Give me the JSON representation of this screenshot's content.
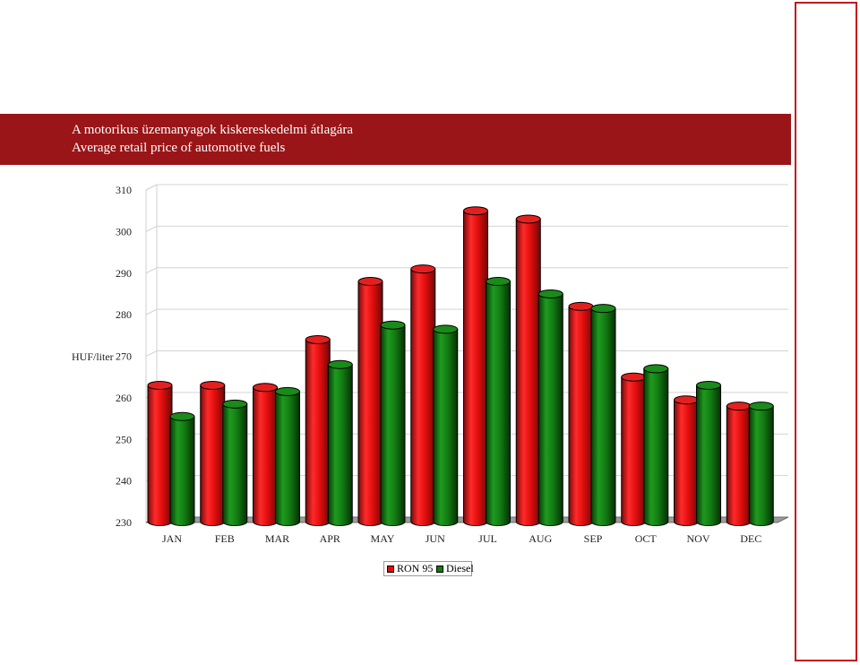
{
  "header": {
    "title_hu": "A motorikus üzemanyagok kiskereskedelmi átlagára",
    "title_en": "Average retail price of automotive fuels"
  },
  "colors": {
    "header_bg": "#9a1517",
    "ron95": "#e00d0d",
    "diesel": "#127a12"
  },
  "chart_data": {
    "type": "bar",
    "title": "Average retail price of automotive fuels",
    "ylabel": "HUF/liter",
    "xlabel": "",
    "ylim": [
      230,
      310
    ],
    "yticks": [
      230,
      240,
      250,
      260,
      270,
      280,
      290,
      300,
      310
    ],
    "grid": true,
    "legend_position": "bottom-center",
    "categories": [
      "JAN",
      "FEB",
      "MAR",
      "APR",
      "MAY",
      "JUN",
      "JUL",
      "AUG",
      "SEP",
      "OCT",
      "NOV",
      "DEC"
    ],
    "series": [
      {
        "name": "RON 95",
        "color": "#e00d0d",
        "values": [
          263,
          263,
          262.5,
          274,
          288,
          291,
          305,
          303,
          282,
          265,
          259.5,
          258
        ]
      },
      {
        "name": "Diesel",
        "color": "#127a12",
        "values": [
          255.5,
          258.5,
          261.5,
          268,
          277.5,
          276.5,
          288,
          285,
          281.5,
          267,
          263,
          258
        ]
      }
    ]
  }
}
